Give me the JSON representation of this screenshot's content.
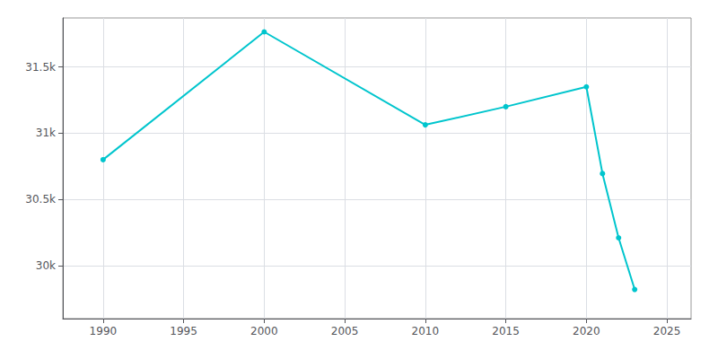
{
  "chart_data": {
    "type": "line",
    "x": [
      1990,
      2000,
      2010,
      2015,
      2020,
      2021,
      2022,
      2023
    ],
    "values": [
      30800,
      31765,
      31063,
      31200,
      31350,
      30695,
      30210,
      29820
    ],
    "color": "#00C5CD",
    "marker": "circle",
    "xlim": [
      1987.5,
      2026.5
    ],
    "xticks": [
      1990,
      1995,
      2000,
      2005,
      2010,
      2015,
      2020,
      2025
    ],
    "ylim": [
      29600,
      31870
    ],
    "yticks": [
      {
        "value": 30000,
        "label": "30k"
      },
      {
        "value": 30500,
        "label": "30.5k"
      },
      {
        "value": 31000,
        "label": "31k"
      },
      {
        "value": 31500,
        "label": "31.5k"
      }
    ],
    "grid": true
  }
}
